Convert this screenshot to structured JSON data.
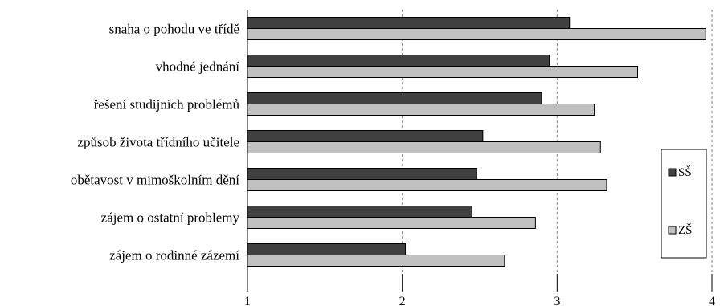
{
  "chart_data": {
    "type": "bar",
    "orientation": "horizontal",
    "categories": [
      "snaha o pohodu ve třídě",
      "vhodné jednání",
      "řešení studijních problémů",
      "způsob života třídního učitele",
      "obětavost v mimoškolním dění",
      "zájem o ostatní problemy",
      "zájem o rodinné zázemí"
    ],
    "series": [
      {
        "name": "SŠ",
        "color": "#404040",
        "values": [
          3.08,
          2.95,
          2.9,
          2.52,
          2.48,
          2.45,
          2.02
        ]
      },
      {
        "name": "ZŠ",
        "color": "#c0c0c0",
        "values": [
          3.96,
          3.52,
          3.24,
          3.28,
          3.32,
          2.86,
          2.66
        ]
      }
    ],
    "xlim": [
      1,
      4
    ],
    "xticks": [
      "1",
      "2",
      "3",
      "4"
    ],
    "grid": "vertical dashed",
    "legend": "right"
  }
}
